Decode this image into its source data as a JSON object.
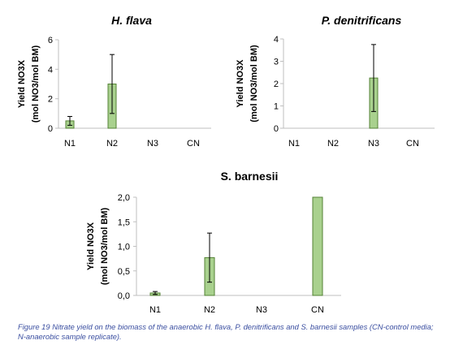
{
  "chart_data": [
    {
      "type": "bar",
      "title": "H. flava",
      "title_italic": true,
      "ylabel": "Yield NO3X",
      "ylabel2": "(mol NO3/mol BM)",
      "xlabel": "",
      "categories": [
        "N1",
        "N2",
        "N3",
        "CN"
      ],
      "values": [
        0.5,
        3.0,
        0.0,
        0.0
      ],
      "errors": [
        0.3,
        2.0,
        0.0,
        0.0
      ],
      "ylim": [
        0,
        6
      ],
      "yticks": [
        0,
        2,
        4,
        6
      ],
      "ytick_labels": [
        "0",
        "2",
        "4",
        "6"
      ],
      "grid": false,
      "bar_color": "#a9d18e",
      "bar_edge_color": "#548235"
    },
    {
      "type": "bar",
      "title": "P. denitrificans",
      "title_italic": true,
      "ylabel": "Yield NO3X",
      "ylabel2": "(mol NO3/mol BM)",
      "xlabel": "",
      "categories": [
        "N1",
        "N2",
        "N3",
        "CN"
      ],
      "values": [
        0.0,
        0.0,
        2.25,
        0.0
      ],
      "errors": [
        0.0,
        0.0,
        1.5,
        0.0
      ],
      "ylim": [
        0,
        4
      ],
      "yticks": [
        0,
        1,
        2,
        3,
        4
      ],
      "ytick_labels": [
        "0",
        "1",
        "2",
        "3",
        "4"
      ],
      "grid": false,
      "bar_color": "#a9d18e",
      "bar_edge_color": "#548235"
    },
    {
      "type": "bar",
      "title": "S. barnesii",
      "title_italic": false,
      "ylabel": "Yield NO3X",
      "ylabel2": "(mol NO3/mol BM)",
      "xlabel": "",
      "categories": [
        "N1",
        "N2",
        "N3",
        "CN"
      ],
      "values": [
        0.05,
        0.77,
        0.0,
        2.0
      ],
      "errors": [
        0.03,
        0.5,
        0.0,
        0.0
      ],
      "ylim": [
        0,
        2
      ],
      "yticks": [
        0,
        0.5,
        1,
        1.5,
        2
      ],
      "ytick_labels": [
        "0,0",
        "0,5",
        "1,0",
        "1,5",
        "2,0"
      ],
      "grid": false,
      "bar_color": "#a9d18e",
      "bar_edge_color": "#548235"
    }
  ],
  "caption": "Figure 19 Nitrate yield on the biomass of the anaerobic H. flava, P. denitrificans and S. barnesii samples (CN-control media; N-anaerobic sample replicate)."
}
